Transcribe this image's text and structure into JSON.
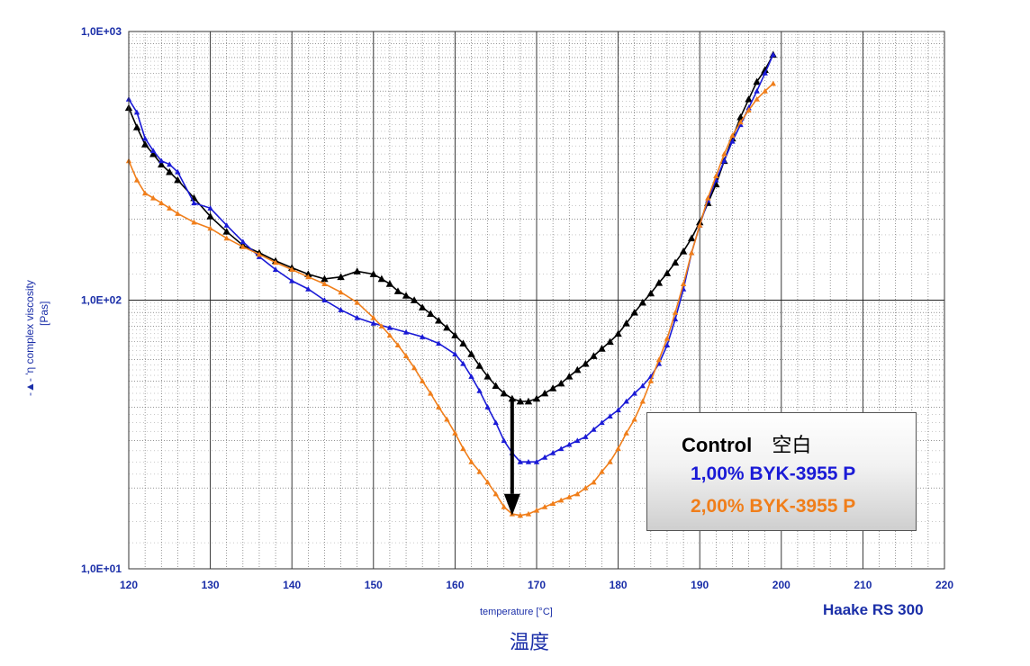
{
  "chart_data": {
    "type": "line",
    "yscale": "log",
    "xlim": [
      120,
      220
    ],
    "ylim": [
      10,
      1000
    ],
    "x_ticks": [
      "120",
      "130",
      "140",
      "150",
      "160",
      "170",
      "180",
      "190",
      "200",
      "210",
      "220"
    ],
    "y_ticks": [
      "1,0E+01",
      "1,0E+02",
      "1,0E+03"
    ],
    "xlabel": "temperature [°C]",
    "xlabel_cn": "温度",
    "ylabel_line1": "-▲- 'η complex viscosity",
    "ylabel_line2": "[Pas]",
    "instrument": "Haake RS 300",
    "legend": {
      "control_label": "Control",
      "control_cn": "空白",
      "s1_label": "1,00% BYK-3955 P",
      "s2_label": "2,00% BYK-3955 P"
    },
    "colors": {
      "control": "#000000",
      "s1": "#1a1ad6",
      "s2": "#f07e1a",
      "axis_text": "#1a2ea8"
    },
    "annotation": "downward arrow at 167°C from Control minimum (~42 Pas) to 2,00% minimum (~16 Pas)",
    "series": [
      {
        "name": "Control",
        "key": "control",
        "x": [
          120,
          121,
          122,
          123,
          124,
          125,
          126,
          128,
          130,
          132,
          134,
          136,
          138,
          140,
          142,
          144,
          146,
          148,
          150,
          151,
          152,
          153,
          154,
          155,
          156,
          157,
          158,
          159,
          160,
          161,
          162,
          163,
          164,
          165,
          166,
          167,
          168,
          169,
          170,
          171,
          172,
          173,
          174,
          175,
          176,
          177,
          178,
          179,
          180,
          181,
          182,
          183,
          184,
          185,
          186,
          187,
          188,
          189,
          190,
          191,
          192,
          193,
          194,
          195,
          196,
          197,
          198,
          199
        ],
        "y": [
          520,
          440,
          380,
          350,
          320,
          300,
          280,
          240,
          205,
          180,
          160,
          150,
          140,
          132,
          125,
          120,
          122,
          128,
          125,
          120,
          115,
          108,
          104,
          100,
          94,
          89,
          84,
          79,
          74,
          69,
          63,
          57,
          52,
          48,
          45,
          43,
          42,
          42,
          43,
          45,
          47,
          49,
          52,
          55,
          58,
          62,
          66,
          70,
          75,
          82,
          90,
          98,
          106,
          116,
          126,
          138,
          152,
          170,
          195,
          230,
          270,
          330,
          400,
          480,
          560,
          650,
          720,
          820
        ]
      },
      {
        "name": "1,00% BYK-3955 P",
        "key": "s1",
        "x": [
          120,
          121,
          122,
          123,
          124,
          125,
          126,
          128,
          130,
          132,
          134,
          136,
          138,
          140,
          142,
          144,
          146,
          148,
          150,
          152,
          154,
          156,
          158,
          160,
          161,
          162,
          163,
          164,
          165,
          166,
          167,
          168,
          169,
          170,
          171,
          172,
          173,
          174,
          175,
          176,
          177,
          178,
          179,
          180,
          181,
          182,
          183,
          184,
          185,
          186,
          187,
          188,
          189,
          190,
          191,
          192,
          193,
          194,
          195,
          196,
          197,
          198,
          199
        ],
        "y": [
          560,
          500,
          400,
          360,
          330,
          320,
          300,
          230,
          220,
          190,
          165,
          145,
          130,
          118,
          110,
          100,
          92,
          86,
          82,
          79,
          76,
          73,
          69,
          63,
          58,
          52,
          46,
          40,
          35,
          30,
          27,
          25,
          25,
          25,
          26,
          27,
          28,
          29,
          30,
          31,
          33,
          35,
          37,
          39,
          42,
          45,
          48,
          52,
          58,
          68,
          85,
          110,
          150,
          190,
          235,
          280,
          330,
          390,
          450,
          520,
          600,
          700,
          820
        ]
      },
      {
        "name": "2,00% BYK-3955 P",
        "key": "s2",
        "x": [
          120,
          121,
          122,
          123,
          124,
          125,
          126,
          128,
          130,
          132,
          134,
          136,
          138,
          140,
          142,
          144,
          146,
          148,
          150,
          151,
          152,
          153,
          154,
          155,
          156,
          157,
          158,
          159,
          160,
          161,
          162,
          163,
          164,
          165,
          166,
          167,
          168,
          169,
          170,
          171,
          172,
          173,
          174,
          175,
          176,
          177,
          178,
          179,
          180,
          181,
          182,
          183,
          184,
          185,
          186,
          187,
          188,
          189,
          190,
          191,
          192,
          193,
          194,
          195,
          196,
          197,
          198,
          199
        ],
        "y": [
          330,
          280,
          250,
          240,
          230,
          220,
          210,
          195,
          185,
          170,
          158,
          148,
          138,
          130,
          122,
          115,
          107,
          98,
          86,
          80,
          74,
          68,
          62,
          56,
          50,
          45,
          40,
          36,
          32,
          28,
          25,
          23,
          21,
          19,
          17,
          16,
          15.8,
          16,
          16.5,
          17,
          17.5,
          18,
          18.5,
          19,
          20,
          21,
          23,
          25,
          28,
          32,
          36,
          42,
          50,
          60,
          72,
          90,
          115,
          150,
          190,
          240,
          290,
          350,
          410,
          460,
          510,
          560,
          600,
          640
        ]
      }
    ]
  }
}
